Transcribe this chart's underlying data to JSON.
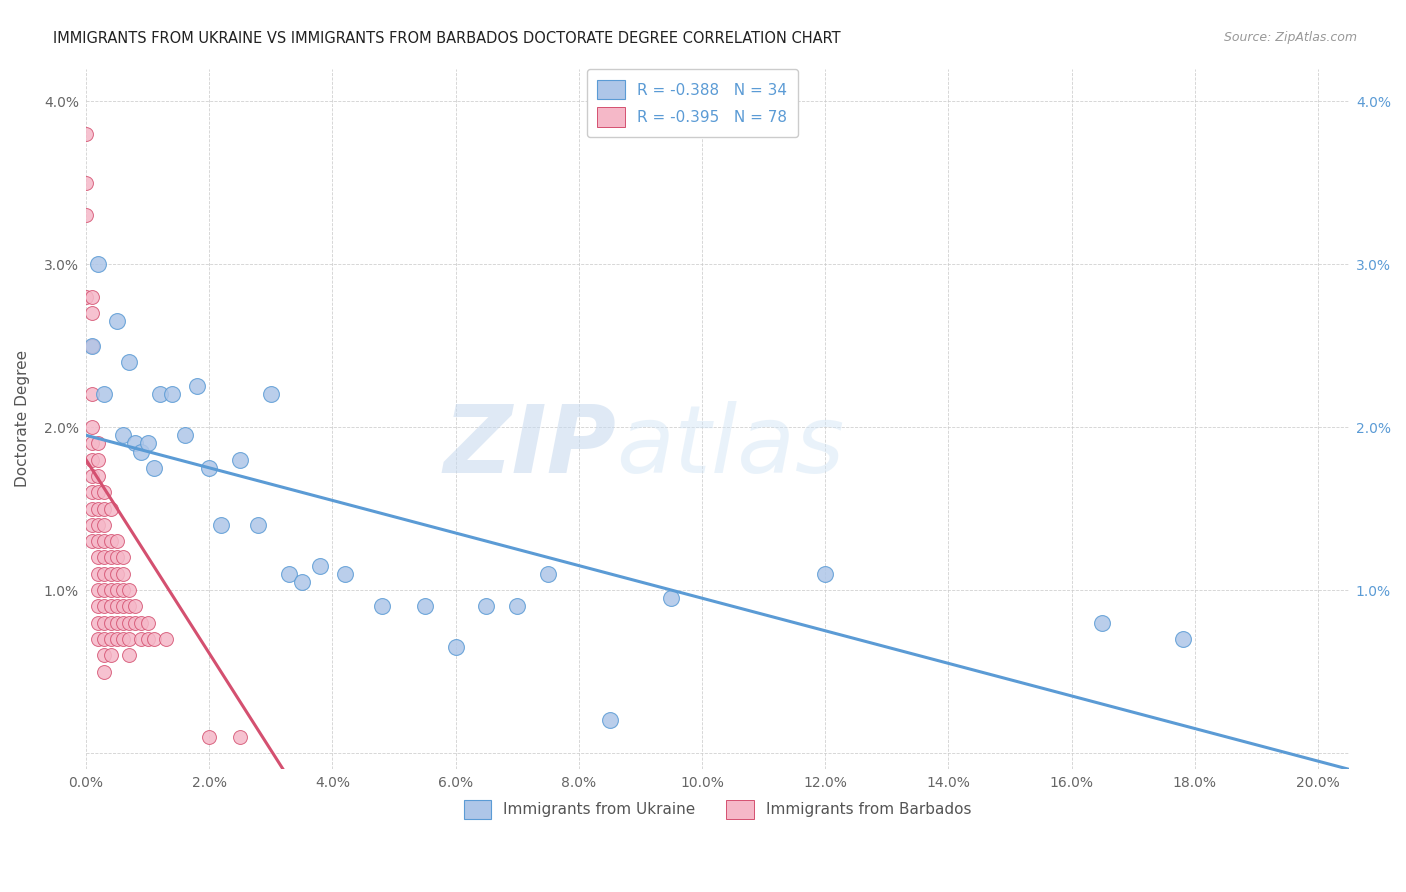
{
  "title": "IMMIGRANTS FROM UKRAINE VS IMMIGRANTS FROM BARBADOS DOCTORATE DEGREE CORRELATION CHART",
  "source": "Source: ZipAtlas.com",
  "ylabel": "Doctorate Degree",
  "x_tick_labels": [
    "0.0%",
    "2.0%",
    "4.0%",
    "6.0%",
    "8.0%",
    "10.0%",
    "12.0%",
    "14.0%",
    "16.0%",
    "18.0%",
    "20.0%"
  ],
  "x_tick_vals": [
    0.0,
    0.02,
    0.04,
    0.06,
    0.08,
    0.1,
    0.12,
    0.14,
    0.16,
    0.18,
    0.2
  ],
  "y_tick_labels_left": [
    "",
    "1.0%",
    "2.0%",
    "3.0%",
    "4.0%"
  ],
  "y_tick_labels_right": [
    "",
    "1.0%",
    "2.0%",
    "3.0%",
    "4.0%"
  ],
  "y_tick_vals": [
    0.0,
    0.01,
    0.02,
    0.03,
    0.04
  ],
  "xlim": [
    0.0,
    0.205
  ],
  "ylim": [
    -0.001,
    0.042
  ],
  "legend_entry1": "R = -0.388   N = 34",
  "legend_entry2": "R = -0.395   N = 78",
  "legend_label1": "Immigrants from Ukraine",
  "legend_label2": "Immigrants from Barbados",
  "ukraine_color": "#aec6e8",
  "barbados_color": "#f5b8c8",
  "ukraine_line_color": "#5b9bd5",
  "barbados_line_color": "#d45070",
  "watermark_zip": "ZIP",
  "watermark_atlas": "atlas",
  "ukraine_line_x": [
    0.0,
    0.205
  ],
  "ukraine_line_y": [
    0.0195,
    -0.001
  ],
  "barbados_line_x": [
    0.0,
    0.032
  ],
  "barbados_line_y": [
    0.018,
    -0.001
  ],
  "ukraine_scatter_x": [
    0.001,
    0.002,
    0.003,
    0.005,
    0.006,
    0.007,
    0.008,
    0.009,
    0.01,
    0.011,
    0.012,
    0.014,
    0.016,
    0.018,
    0.02,
    0.022,
    0.025,
    0.028,
    0.03,
    0.033,
    0.035,
    0.038,
    0.042,
    0.048,
    0.055,
    0.06,
    0.065,
    0.07,
    0.075,
    0.085,
    0.095,
    0.12,
    0.165,
    0.178
  ],
  "ukraine_scatter_y": [
    0.025,
    0.03,
    0.022,
    0.0265,
    0.0195,
    0.024,
    0.019,
    0.0185,
    0.019,
    0.0175,
    0.022,
    0.022,
    0.0195,
    0.0225,
    0.0175,
    0.014,
    0.018,
    0.014,
    0.022,
    0.011,
    0.0105,
    0.0115,
    0.011,
    0.009,
    0.009,
    0.0065,
    0.009,
    0.009,
    0.011,
    0.002,
    0.0095,
    0.011,
    0.008,
    0.007
  ],
  "barbados_scatter_x": [
    0.0,
    0.0,
    0.0,
    0.0,
    0.001,
    0.001,
    0.001,
    0.001,
    0.001,
    0.001,
    0.001,
    0.001,
    0.001,
    0.001,
    0.001,
    0.001,
    0.002,
    0.002,
    0.002,
    0.002,
    0.002,
    0.002,
    0.002,
    0.002,
    0.002,
    0.002,
    0.002,
    0.002,
    0.002,
    0.003,
    0.003,
    0.003,
    0.003,
    0.003,
    0.003,
    0.003,
    0.003,
    0.003,
    0.003,
    0.003,
    0.003,
    0.004,
    0.004,
    0.004,
    0.004,
    0.004,
    0.004,
    0.004,
    0.004,
    0.004,
    0.005,
    0.005,
    0.005,
    0.005,
    0.005,
    0.005,
    0.005,
    0.006,
    0.006,
    0.006,
    0.006,
    0.006,
    0.006,
    0.007,
    0.007,
    0.007,
    0.007,
    0.007,
    0.008,
    0.008,
    0.009,
    0.009,
    0.01,
    0.01,
    0.011,
    0.013,
    0.02,
    0.025
  ],
  "barbados_scatter_y": [
    0.038,
    0.035,
    0.033,
    0.028,
    0.028,
    0.027,
    0.025,
    0.022,
    0.02,
    0.019,
    0.018,
    0.017,
    0.016,
    0.015,
    0.014,
    0.013,
    0.019,
    0.018,
    0.017,
    0.016,
    0.015,
    0.014,
    0.013,
    0.012,
    0.011,
    0.01,
    0.009,
    0.008,
    0.007,
    0.016,
    0.015,
    0.014,
    0.013,
    0.012,
    0.011,
    0.01,
    0.009,
    0.008,
    0.007,
    0.006,
    0.005,
    0.015,
    0.013,
    0.012,
    0.011,
    0.01,
    0.009,
    0.008,
    0.007,
    0.006,
    0.013,
    0.012,
    0.011,
    0.01,
    0.009,
    0.008,
    0.007,
    0.012,
    0.011,
    0.01,
    0.009,
    0.008,
    0.007,
    0.01,
    0.009,
    0.008,
    0.007,
    0.006,
    0.009,
    0.008,
    0.008,
    0.007,
    0.008,
    0.007,
    0.007,
    0.007,
    0.001,
    0.001
  ]
}
